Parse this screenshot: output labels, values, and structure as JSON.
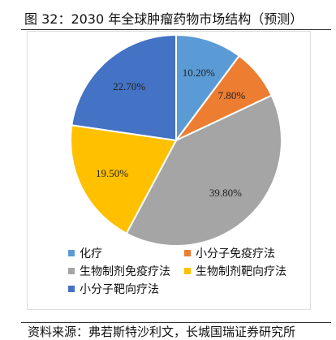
{
  "header": {
    "title": "图 32：2030 年全球肿瘤药物市场结构（预测）"
  },
  "footer": {
    "source": "资料来源：弗若斯特沙利文，长城国瑞证券研究所"
  },
  "chart_data": {
    "type": "pie",
    "title": "",
    "slices": [
      {
        "name": "化疗",
        "value": 10.2,
        "label": "10.20%",
        "color": "#5B9BD5"
      },
      {
        "name": "小分子免疫疗法",
        "value": 7.8,
        "label": "7.80%",
        "color": "#ED7D31"
      },
      {
        "name": "生物制剂免疫疗法",
        "value": 39.8,
        "label": "39.80%",
        "color": "#A5A5A5"
      },
      {
        "name": "生物制剂靶向疗法",
        "value": 19.5,
        "label": "19.50%",
        "color": "#FFC000"
      },
      {
        "name": "小分子靶向疗法",
        "value": 22.7,
        "label": "22.70%",
        "color": "#4472C4"
      }
    ],
    "legend_position": "bottom"
  }
}
